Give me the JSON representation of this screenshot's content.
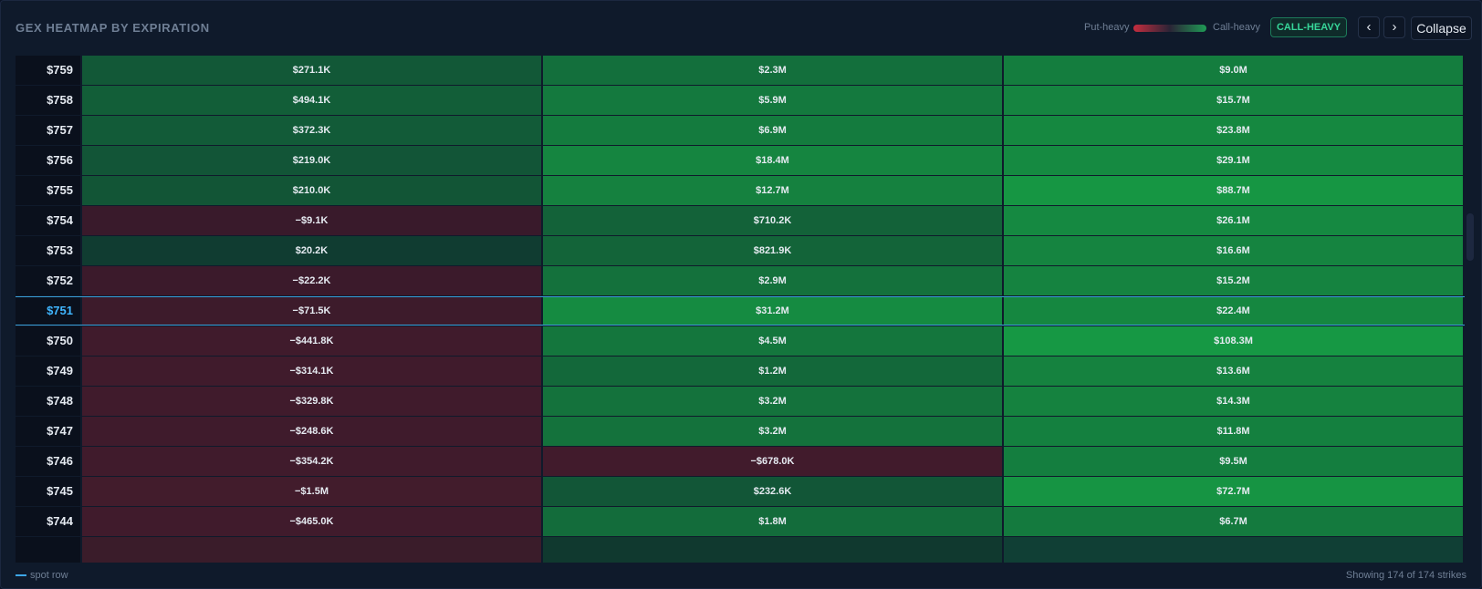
{
  "header": {
    "title": "GEX HEATMAP BY EXPIRATION",
    "legend_put": "Put-heavy",
    "legend_call": "Call-heavy",
    "badge": "CALL-HEAVY",
    "prev": "‹",
    "next": "›",
    "collapse": "Collapse"
  },
  "colors": {
    "put_heavy": "#c62d3e",
    "call_heavy": "#1f9a55",
    "spot_accent": "#40b6ff"
  },
  "grid": {
    "partial_top_cells": [
      "",
      "",
      ""
    ],
    "rows": [
      {
        "strike": "$759",
        "values": [
          "$271.1K",
          "$2.3M",
          "$9.0M"
        ],
        "gex": [
          271100,
          2300000,
          9000000
        ]
      },
      {
        "strike": "$758",
        "values": [
          "$494.1K",
          "$5.9M",
          "$15.7M"
        ],
        "gex": [
          494100,
          5900000,
          15700000
        ]
      },
      {
        "strike": "$757",
        "values": [
          "$372.3K",
          "$6.9M",
          "$23.8M"
        ],
        "gex": [
          372300,
          6900000,
          23800000
        ]
      },
      {
        "strike": "$756",
        "values": [
          "$219.0K",
          "$18.4M",
          "$29.1M"
        ],
        "gex": [
          219000,
          18400000,
          29100000
        ]
      },
      {
        "strike": "$755",
        "values": [
          "$210.0K",
          "$12.7M",
          "$88.7M"
        ],
        "gex": [
          210000,
          12700000,
          88700000
        ]
      },
      {
        "strike": "$754",
        "values": [
          "−$9.1K",
          "$710.2K",
          "$26.1M"
        ],
        "gex": [
          -9100,
          710200,
          26100000
        ]
      },
      {
        "strike": "$753",
        "values": [
          "$20.2K",
          "$821.9K",
          "$16.6M"
        ],
        "gex": [
          20200,
          821900,
          16600000
        ]
      },
      {
        "strike": "$752",
        "values": [
          "−$22.2K",
          "$2.9M",
          "$15.2M"
        ],
        "gex": [
          -22200,
          2900000,
          15200000
        ]
      },
      {
        "strike": "$751",
        "values": [
          "−$71.5K",
          "$31.2M",
          "$22.4M"
        ],
        "gex": [
          -71500,
          31200000,
          22400000
        ],
        "spot": true
      },
      {
        "strike": "$750",
        "values": [
          "−$441.8K",
          "$4.5M",
          "$108.3M"
        ],
        "gex": [
          -441800,
          4500000,
          108300000
        ]
      },
      {
        "strike": "$749",
        "values": [
          "−$314.1K",
          "$1.2M",
          "$13.6M"
        ],
        "gex": [
          -314100,
          1200000,
          13600000
        ]
      },
      {
        "strike": "$748",
        "values": [
          "−$329.8K",
          "$3.2M",
          "$14.3M"
        ],
        "gex": [
          -329800,
          3200000,
          14300000
        ]
      },
      {
        "strike": "$747",
        "values": [
          "−$248.6K",
          "$3.2M",
          "$11.8M"
        ],
        "gex": [
          -248600,
          3200000,
          11800000
        ]
      },
      {
        "strike": "$746",
        "values": [
          "−$354.2K",
          "−$678.0K",
          "$9.5M"
        ],
        "gex": [
          -354200,
          -678000,
          9500000
        ]
      },
      {
        "strike": "$745",
        "values": [
          "−$1.5M",
          "$232.6K",
          "$72.7M"
        ],
        "gex": [
          -1500000,
          232600,
          72700000
        ]
      },
      {
        "strike": "$744",
        "values": [
          "−$465.0K",
          "$1.8M",
          "$6.7M"
        ],
        "gex": [
          -465000,
          1800000,
          6700000
        ]
      }
    ]
  },
  "footer": {
    "spot_legend": "spot row",
    "showing": "Showing 174 of 174 strikes"
  }
}
